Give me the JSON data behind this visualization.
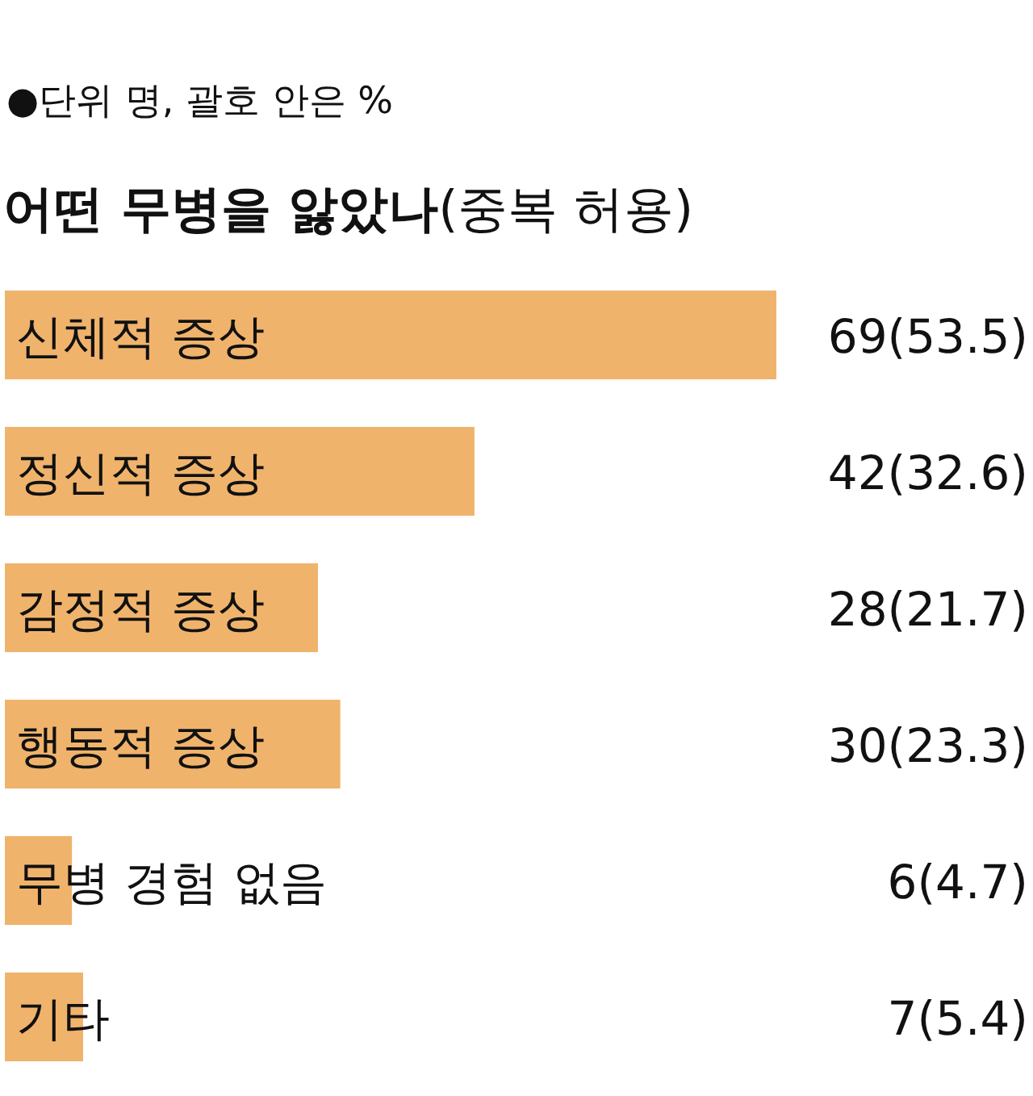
{
  "chart_data": {
    "type": "bar",
    "orientation": "horizontal",
    "subtitle": "●단위 명, 괄호 안은 %",
    "title": "**어떤 무병을 앓았나**(중복 허용)",
    "categories": [
      "신체적 증상",
      "정신적 증상",
      "감정적 증상",
      "행동적 증상",
      "무병 경험 없음",
      "기타"
    ],
    "values": [
      69,
      42,
      28,
      30,
      6,
      7
    ],
    "value_labels": [
      "69(53.5)",
      "42(32.6)",
      "28(21.7)",
      "30(23.3)",
      "6(4.7)",
      "7(5.4)"
    ],
    "color": "#f0b36c"
  }
}
